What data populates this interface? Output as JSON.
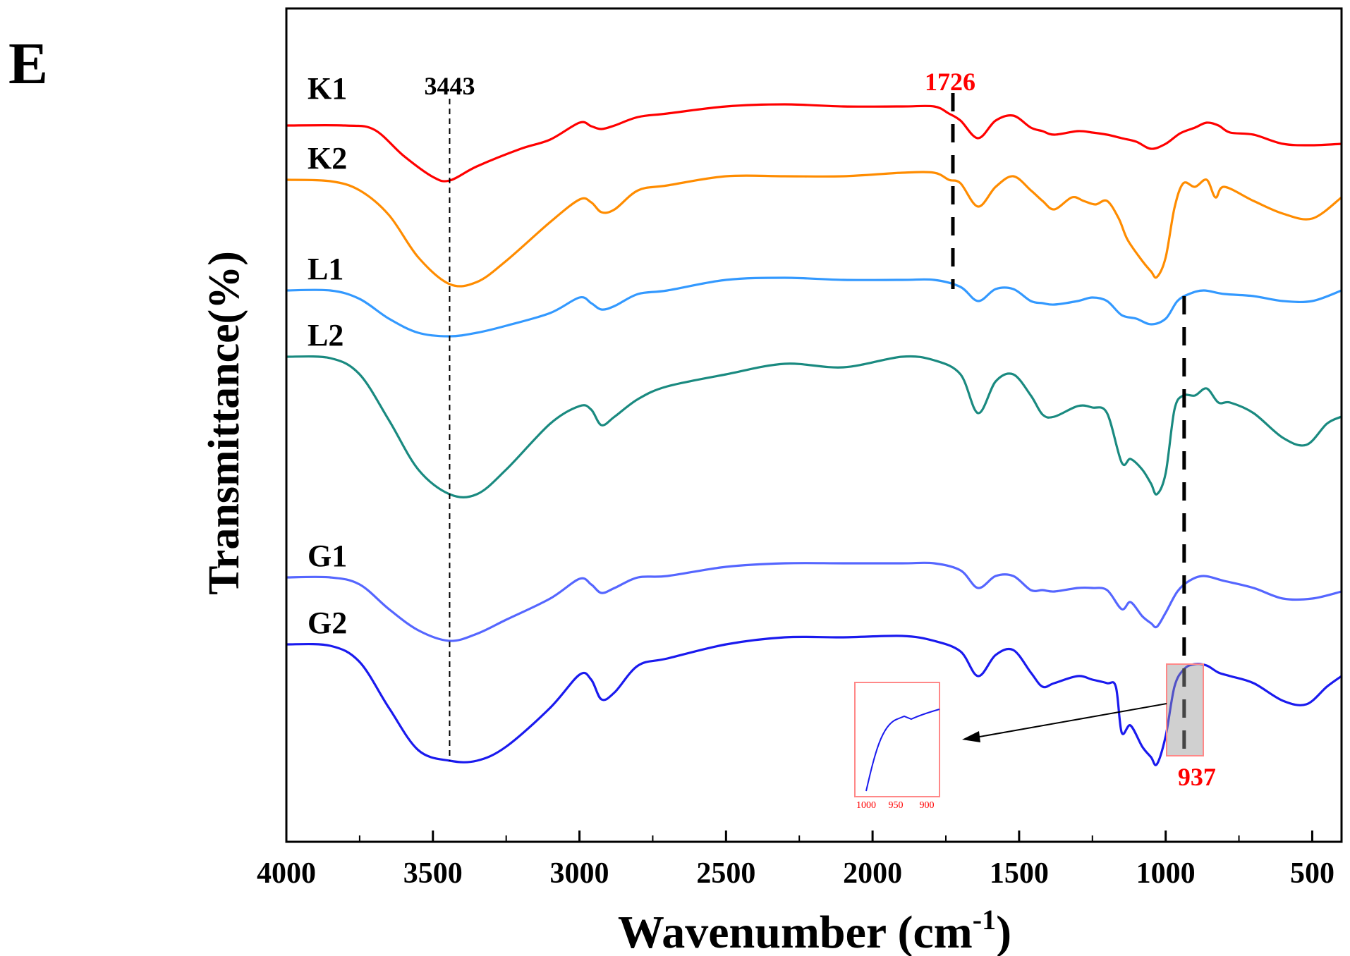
{
  "panel_label": "E",
  "chart_data": {
    "type": "line",
    "xlabel": "Wavenumber (cm",
    "xlabel_sup": "-1",
    "xlabel_close": ")",
    "ylabel": "Transmittance(%)",
    "xlim": [
      4000,
      400
    ],
    "xticks": [
      4000,
      3500,
      3000,
      2500,
      2000,
      1500,
      1000,
      500
    ],
    "grid": false,
    "legend": "none",
    "series": [
      {
        "name": "K1",
        "color": "#ff0000",
        "offset": 0,
        "points": [
          [
            4000,
            0.22
          ],
          [
            3800,
            0.22
          ],
          [
            3700,
            0.28
          ],
          [
            3600,
            0.65
          ],
          [
            3500,
            0.95
          ],
          [
            3443,
            1.0
          ],
          [
            3350,
            0.8
          ],
          [
            3200,
            0.55
          ],
          [
            3100,
            0.42
          ],
          [
            3000,
            0.18
          ],
          [
            2960,
            0.23
          ],
          [
            2925,
            0.27
          ],
          [
            2880,
            0.22
          ],
          [
            2800,
            0.1
          ],
          [
            2700,
            0.05
          ],
          [
            2500,
            -0.05
          ],
          [
            2300,
            -0.08
          ],
          [
            2100,
            -0.05
          ],
          [
            1900,
            -0.05
          ],
          [
            1790,
            -0.05
          ],
          [
            1740,
            0.05
          ],
          [
            1700,
            0.15
          ],
          [
            1640,
            0.4
          ],
          [
            1580,
            0.15
          ],
          [
            1520,
            0.08
          ],
          [
            1460,
            0.25
          ],
          [
            1420,
            0.3
          ],
          [
            1380,
            0.35
          ],
          [
            1300,
            0.3
          ],
          [
            1250,
            0.32
          ],
          [
            1200,
            0.35
          ],
          [
            1150,
            0.4
          ],
          [
            1100,
            0.45
          ],
          [
            1050,
            0.55
          ],
          [
            1000,
            0.48
          ],
          [
            950,
            0.33
          ],
          [
            900,
            0.25
          ],
          [
            860,
            0.18
          ],
          [
            820,
            0.22
          ],
          [
            780,
            0.32
          ],
          [
            700,
            0.35
          ],
          [
            600,
            0.48
          ],
          [
            500,
            0.5
          ],
          [
            400,
            0.48
          ]
        ]
      },
      {
        "name": "K2",
        "color": "#ff8c00",
        "offset": 99,
        "points": [
          [
            4000,
            0.0
          ],
          [
            3850,
            0.02
          ],
          [
            3750,
            0.15
          ],
          [
            3650,
            0.5
          ],
          [
            3550,
            1.1
          ],
          [
            3443,
            1.48
          ],
          [
            3350,
            1.45
          ],
          [
            3250,
            1.15
          ],
          [
            3100,
            0.6
          ],
          [
            3000,
            0.28
          ],
          [
            2960,
            0.32
          ],
          [
            2925,
            0.46
          ],
          [
            2880,
            0.42
          ],
          [
            2800,
            0.15
          ],
          [
            2700,
            0.08
          ],
          [
            2500,
            -0.05
          ],
          [
            2300,
            -0.05
          ],
          [
            2100,
            -0.05
          ],
          [
            1900,
            -0.1
          ],
          [
            1790,
            -0.1
          ],
          [
            1740,
            0.0
          ],
          [
            1700,
            0.05
          ],
          [
            1640,
            0.38
          ],
          [
            1580,
            0.1
          ],
          [
            1520,
            -0.05
          ],
          [
            1460,
            0.15
          ],
          [
            1420,
            0.3
          ],
          [
            1380,
            0.42
          ],
          [
            1320,
            0.25
          ],
          [
            1280,
            0.3
          ],
          [
            1240,
            0.35
          ],
          [
            1200,
            0.3
          ],
          [
            1160,
            0.55
          ],
          [
            1130,
            0.85
          ],
          [
            1080,
            1.15
          ],
          [
            1050,
            1.3
          ],
          [
            1030,
            1.38
          ],
          [
            1000,
            1.1
          ],
          [
            970,
            0.4
          ],
          [
            940,
            0.05
          ],
          [
            900,
            0.1
          ],
          [
            860,
            0.0
          ],
          [
            830,
            0.25
          ],
          [
            800,
            0.1
          ],
          [
            700,
            0.3
          ],
          [
            600,
            0.48
          ],
          [
            500,
            0.55
          ],
          [
            400,
            0.25
          ]
        ]
      },
      {
        "name": "L1",
        "color": "#3399ff",
        "offset": 256,
        "points": [
          [
            4000,
            0.0
          ],
          [
            3850,
            0.0
          ],
          [
            3750,
            0.12
          ],
          [
            3650,
            0.4
          ],
          [
            3550,
            0.6
          ],
          [
            3443,
            0.65
          ],
          [
            3350,
            0.6
          ],
          [
            3250,
            0.5
          ],
          [
            3100,
            0.32
          ],
          [
            3000,
            0.1
          ],
          [
            2960,
            0.18
          ],
          [
            2925,
            0.27
          ],
          [
            2880,
            0.22
          ],
          [
            2800,
            0.05
          ],
          [
            2700,
            0.0
          ],
          [
            2500,
            -0.15
          ],
          [
            2300,
            -0.18
          ],
          [
            2100,
            -0.15
          ],
          [
            1900,
            -0.15
          ],
          [
            1790,
            -0.15
          ],
          [
            1700,
            -0.05
          ],
          [
            1640,
            0.15
          ],
          [
            1580,
            -0.02
          ],
          [
            1520,
            -0.02
          ],
          [
            1460,
            0.15
          ],
          [
            1420,
            0.18
          ],
          [
            1380,
            0.2
          ],
          [
            1300,
            0.15
          ],
          [
            1250,
            0.1
          ],
          [
            1200,
            0.15
          ],
          [
            1150,
            0.35
          ],
          [
            1100,
            0.4
          ],
          [
            1050,
            0.48
          ],
          [
            1000,
            0.4
          ],
          [
            960,
            0.15
          ],
          [
            920,
            0.05
          ],
          [
            870,
            0.0
          ],
          [
            800,
            0.05
          ],
          [
            700,
            0.08
          ],
          [
            600,
            0.15
          ],
          [
            500,
            0.15
          ],
          [
            400,
            0.0
          ]
        ]
      },
      {
        "name": "L2",
        "color": "#1a8a80",
        "offset": 350,
        "points": [
          [
            4000,
            0.0
          ],
          [
            3850,
            0.02
          ],
          [
            3750,
            0.25
          ],
          [
            3650,
            0.9
          ],
          [
            3550,
            1.6
          ],
          [
            3443,
            1.95
          ],
          [
            3350,
            1.95
          ],
          [
            3250,
            1.6
          ],
          [
            3100,
            0.95
          ],
          [
            3000,
            0.7
          ],
          [
            2960,
            0.75
          ],
          [
            2925,
            0.97
          ],
          [
            2880,
            0.85
          ],
          [
            2800,
            0.6
          ],
          [
            2700,
            0.42
          ],
          [
            2500,
            0.25
          ],
          [
            2300,
            0.1
          ],
          [
            2100,
            0.15
          ],
          [
            1900,
            0.0
          ],
          [
            1790,
            0.05
          ],
          [
            1700,
            0.25
          ],
          [
            1640,
            0.8
          ],
          [
            1580,
            0.35
          ],
          [
            1520,
            0.25
          ],
          [
            1460,
            0.55
          ],
          [
            1420,
            0.82
          ],
          [
            1380,
            0.85
          ],
          [
            1300,
            0.7
          ],
          [
            1250,
            0.72
          ],
          [
            1200,
            0.8
          ],
          [
            1150,
            1.5
          ],
          [
            1120,
            1.45
          ],
          [
            1080,
            1.6
          ],
          [
            1050,
            1.8
          ],
          [
            1030,
            1.95
          ],
          [
            1000,
            1.65
          ],
          [
            970,
            0.75
          ],
          [
            940,
            0.55
          ],
          [
            900,
            0.55
          ],
          [
            860,
            0.45
          ],
          [
            820,
            0.65
          ],
          [
            780,
            0.65
          ],
          [
            700,
            0.8
          ],
          [
            600,
            1.15
          ],
          [
            520,
            1.25
          ],
          [
            450,
            0.95
          ],
          [
            400,
            0.85
          ]
        ]
      },
      {
        "name": "G1",
        "color": "#5566ff",
        "offset": 663,
        "points": [
          [
            4000,
            0.0
          ],
          [
            3850,
            0.0
          ],
          [
            3750,
            0.1
          ],
          [
            3650,
            0.45
          ],
          [
            3550,
            0.75
          ],
          [
            3443,
            0.9
          ],
          [
            3350,
            0.8
          ],
          [
            3250,
            0.6
          ],
          [
            3100,
            0.3
          ],
          [
            3000,
            0.02
          ],
          [
            2960,
            0.1
          ],
          [
            2925,
            0.22
          ],
          [
            2880,
            0.15
          ],
          [
            2800,
            0.0
          ],
          [
            2700,
            -0.02
          ],
          [
            2500,
            -0.15
          ],
          [
            2300,
            -0.2
          ],
          [
            2100,
            -0.2
          ],
          [
            1900,
            -0.2
          ],
          [
            1790,
            -0.2
          ],
          [
            1700,
            -0.1
          ],
          [
            1640,
            0.15
          ],
          [
            1580,
            -0.02
          ],
          [
            1520,
            -0.02
          ],
          [
            1460,
            0.18
          ],
          [
            1420,
            0.18
          ],
          [
            1380,
            0.2
          ],
          [
            1300,
            0.15
          ],
          [
            1250,
            0.15
          ],
          [
            1200,
            0.18
          ],
          [
            1150,
            0.45
          ],
          [
            1120,
            0.35
          ],
          [
            1080,
            0.55
          ],
          [
            1050,
            0.65
          ],
          [
            1030,
            0.7
          ],
          [
            1000,
            0.5
          ],
          [
            960,
            0.2
          ],
          [
            920,
            0.05
          ],
          [
            870,
            -0.02
          ],
          [
            800,
            0.05
          ],
          [
            700,
            0.15
          ],
          [
            600,
            0.3
          ],
          [
            500,
            0.3
          ],
          [
            400,
            0.2
          ]
        ]
      },
      {
        "name": "G2",
        "color": "#1a1aee",
        "offset": 758,
        "points": [
          [
            4000,
            0.0
          ],
          [
            3850,
            0.02
          ],
          [
            3750,
            0.25
          ],
          [
            3650,
            0.9
          ],
          [
            3550,
            1.5
          ],
          [
            3443,
            1.65
          ],
          [
            3350,
            1.65
          ],
          [
            3250,
            1.45
          ],
          [
            3100,
            0.9
          ],
          [
            3000,
            0.43
          ],
          [
            2960,
            0.5
          ],
          [
            2925,
            0.78
          ],
          [
            2880,
            0.68
          ],
          [
            2800,
            0.3
          ],
          [
            2700,
            0.2
          ],
          [
            2500,
            0.0
          ],
          [
            2300,
            -0.1
          ],
          [
            2100,
            -0.1
          ],
          [
            1900,
            -0.12
          ],
          [
            1790,
            -0.05
          ],
          [
            1700,
            0.1
          ],
          [
            1640,
            0.45
          ],
          [
            1580,
            0.15
          ],
          [
            1520,
            0.08
          ],
          [
            1460,
            0.4
          ],
          [
            1420,
            0.6
          ],
          [
            1380,
            0.55
          ],
          [
            1300,
            0.45
          ],
          [
            1250,
            0.5
          ],
          [
            1200,
            0.55
          ],
          [
            1170,
            0.6
          ],
          [
            1150,
            1.25
          ],
          [
            1120,
            1.15
          ],
          [
            1080,
            1.45
          ],
          [
            1050,
            1.6
          ],
          [
            1030,
            1.7
          ],
          [
            1000,
            1.3
          ],
          [
            970,
            0.6
          ],
          [
            937,
            0.35
          ],
          [
            900,
            0.28
          ],
          [
            860,
            0.3
          ],
          [
            820,
            0.4
          ],
          [
            780,
            0.45
          ],
          [
            700,
            0.55
          ],
          [
            600,
            0.8
          ],
          [
            520,
            0.85
          ],
          [
            450,
            0.6
          ],
          [
            400,
            0.45
          ]
        ]
      }
    ],
    "annotations": [
      {
        "text": "3443",
        "x": 3443,
        "color": "#000000"
      },
      {
        "text": "1726",
        "x": 1726,
        "color": "#ff0000"
      },
      {
        "text": "937",
        "x": 937,
        "color": "#ff0000"
      }
    ],
    "inset": {
      "xticks": [
        "1000",
        "950",
        "900"
      ],
      "tick_color": "#ff0000",
      "line_color": "#1a1aee"
    }
  }
}
